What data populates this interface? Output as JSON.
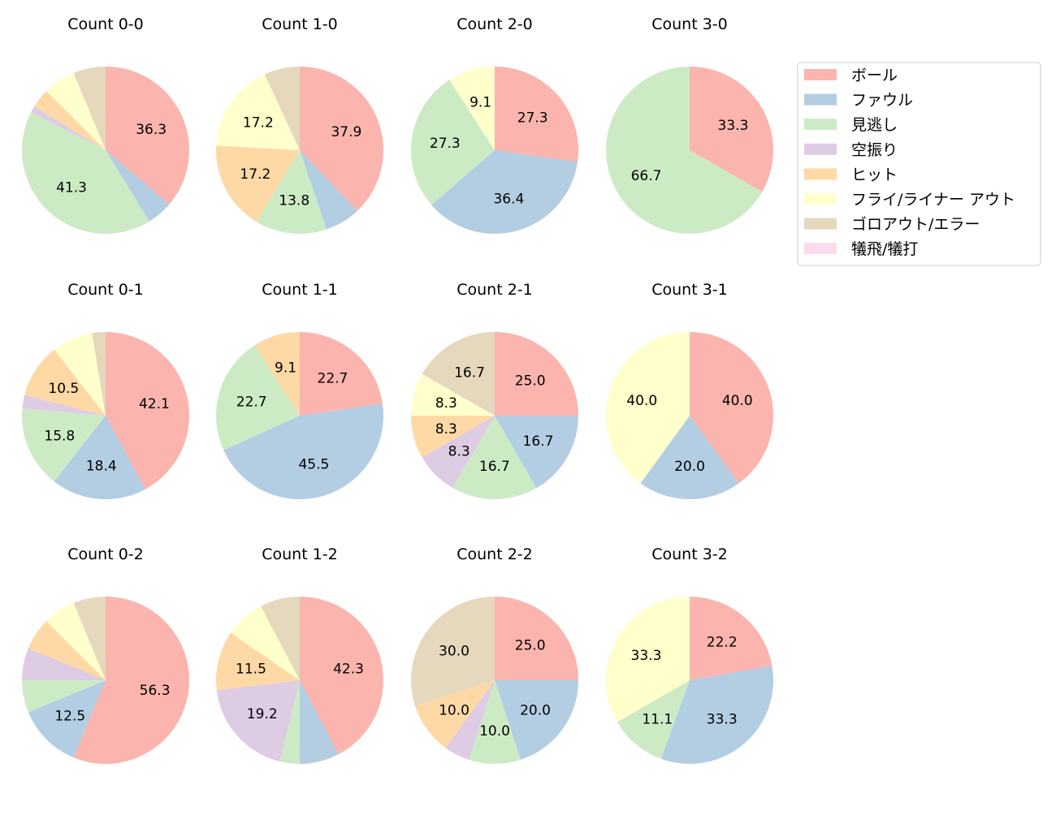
{
  "chart_data": {
    "type": "pie",
    "legend": {
      "placement": "top-right",
      "entries": [
        "ボール",
        "ファウル",
        "見逃し",
        "空振り",
        "ヒット",
        "フライ/ライナー アウト",
        "ゴロアウト/エラー",
        "犠飛/犠打"
      ]
    },
    "colors": [
      "#fbb4ae",
      "#b3cde3",
      "#ccebc5",
      "#decbe4",
      "#fed9a6",
      "#ffffcc",
      "#e5d8bd",
      "#fddaec"
    ],
    "start": "top, clockwise",
    "label_format": "percent, 1 decimal, shown for slices of 8% or more",
    "pies": [
      {
        "title": "Count 0-0",
        "values": [
          36.25,
          5.0,
          41.25,
          1.25,
          3.75,
          6.25,
          6.25,
          0
        ]
      },
      {
        "title": "Count 1-0",
        "values": [
          37.9,
          6.9,
          13.8,
          0,
          17.2,
          17.2,
          6.9,
          0
        ]
      },
      {
        "title": "Count 2-0",
        "values": [
          27.3,
          36.4,
          27.3,
          0,
          0,
          9.1,
          0,
          0
        ]
      },
      {
        "title": "Count 3-0",
        "values": [
          33.3,
          0,
          66.7,
          0,
          0,
          0,
          0,
          0
        ]
      },
      {
        "title": "Count 0-1",
        "values": [
          42.1,
          18.4,
          15.8,
          2.6,
          10.5,
          7.9,
          2.6,
          0
        ]
      },
      {
        "title": "Count 1-1",
        "values": [
          22.7,
          45.5,
          22.7,
          0,
          9.1,
          0,
          0,
          0
        ]
      },
      {
        "title": "Count 2-1",
        "values": [
          25.0,
          16.7,
          16.7,
          8.3,
          8.3,
          8.3,
          16.7,
          0
        ]
      },
      {
        "title": "Count 3-1",
        "values": [
          40.0,
          20.0,
          0,
          0,
          0,
          40.0,
          0,
          0
        ]
      },
      {
        "title": "Count 0-2",
        "values": [
          56.25,
          12.5,
          6.25,
          6.25,
          6.25,
          6.25,
          6.25,
          0
        ]
      },
      {
        "title": "Count 1-2",
        "values": [
          42.3,
          7.7,
          3.8,
          19.2,
          11.5,
          7.7,
          7.7,
          0
        ]
      },
      {
        "title": "Count 2-2",
        "values": [
          25.0,
          20.0,
          10.0,
          5.0,
          10.0,
          0,
          30.0,
          0
        ]
      },
      {
        "title": "Count 3-2",
        "values": [
          22.2,
          33.3,
          11.1,
          0,
          0,
          33.3,
          0,
          0
        ]
      }
    ]
  }
}
